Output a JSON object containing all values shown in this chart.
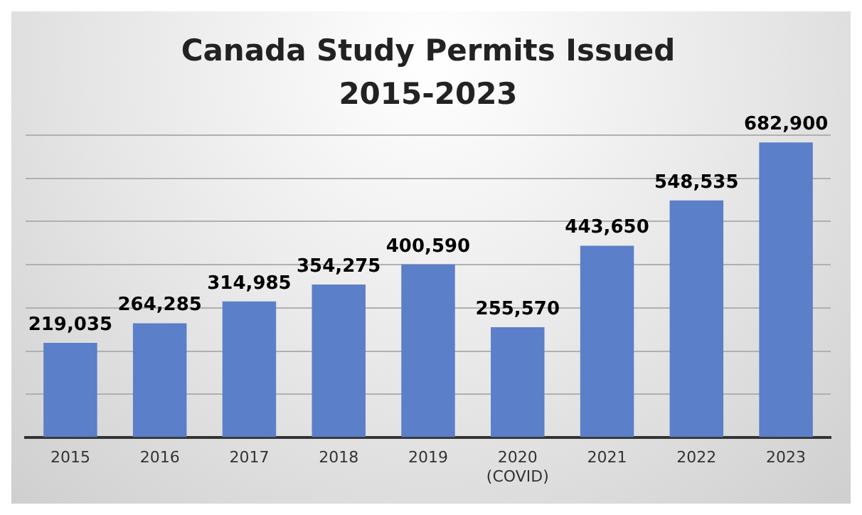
{
  "chart_data": {
    "type": "bar",
    "title": "Canada Study Permits Issued\n2015-2023",
    "categories": [
      "2015",
      "2016",
      "2017",
      "2018",
      "2019",
      "2020\n(COVID)",
      "2021",
      "2022",
      "2023"
    ],
    "values": [
      219035,
      264285,
      314985,
      354275,
      400590,
      255570,
      443650,
      548535,
      682900
    ],
    "color": "#5b7fc8",
    "value_labels": [
      "219,035",
      "264,285",
      "314,985",
      "354,275",
      "400,590",
      "255,570",
      "443,650",
      "548,535",
      "682,900"
    ],
    "tick_labels": "x",
    "grid": "y"
  }
}
